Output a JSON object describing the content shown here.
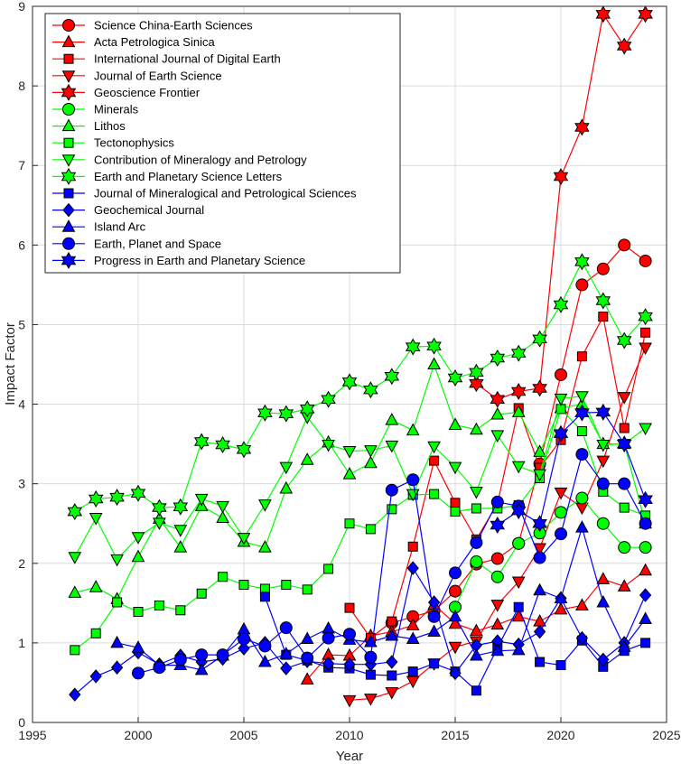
{
  "chart_data": {
    "type": "line",
    "xlabel": "Year",
    "ylabel": "Impact Factor",
    "xlim": [
      1995,
      2025
    ],
    "ylim": [
      0,
      9
    ],
    "xticks": [
      1995,
      2000,
      2005,
      2010,
      2015,
      2020,
      2025
    ],
    "yticks": [
      0,
      1,
      2,
      3,
      4,
      5,
      6,
      7,
      8,
      9
    ],
    "grid": true,
    "legend_position": "top-left",
    "colors": {
      "red": "#ff0000",
      "green": "#00ff00",
      "blue": "#0000ff",
      "edge": "#000000"
    },
    "series": [
      {
        "name": "Science China-Earth Sciences",
        "color": "red",
        "marker": "circle",
        "x": [
          2012,
          2013,
          2014,
          2015,
          2016,
          2017,
          2018,
          2019,
          2020,
          2021,
          2022,
          2023,
          2024
        ],
        "y": [
          1.25,
          1.33,
          1.4,
          1.65,
          1.99,
          2.06,
          2.25,
          3.25,
          4.37,
          5.5,
          5.7,
          6.0,
          5.8
        ]
      },
      {
        "name": "Acta Petrologica Sinica",
        "color": "red",
        "marker": "triangle-up",
        "x": [
          2008,
          2009,
          2010,
          2011,
          2012,
          2013,
          2014,
          2015,
          2016,
          2017,
          2018,
          2019,
          2020,
          2021,
          2022,
          2023,
          2024
        ],
        "y": [
          0.54,
          0.85,
          0.84,
          1.09,
          1.14,
          1.22,
          1.48,
          1.24,
          1.15,
          1.23,
          1.33,
          1.27,
          1.42,
          1.47,
          1.8,
          1.71,
          1.91
        ]
      },
      {
        "name": "International Journal of Digital Earth",
        "color": "red",
        "marker": "square",
        "x": [
          2010,
          2011,
          2012,
          2013,
          2014,
          2015,
          2016,
          2017,
          2018,
          2019,
          2020,
          2021,
          2022,
          2023,
          2024
        ],
        "y": [
          1.44,
          1.06,
          1.27,
          2.21,
          3.29,
          2.76,
          2.3,
          2.75,
          3.95,
          3.2,
          3.55,
          4.6,
          5.1,
          3.7,
          4.9
        ]
      },
      {
        "name": "Journal of Earth Science",
        "color": "red",
        "marker": "triangle-down",
        "x": [
          2010,
          2011,
          2012,
          2013,
          2014,
          2015,
          2016,
          2017,
          2018,
          2019,
          2020,
          2021,
          2022,
          2023,
          2024
        ],
        "y": [
          0.28,
          0.3,
          0.38,
          0.52,
          0.74,
          0.95,
          1.02,
          1.48,
          1.77,
          2.19,
          2.89,
          2.7,
          3.29,
          4.09,
          4.71
        ]
      },
      {
        "name": "Geoscience Frontier",
        "color": "red",
        "marker": "hexagram",
        "x": [
          2016,
          2017,
          2018,
          2019,
          2020,
          2021,
          2022,
          2023,
          2024
        ],
        "y": [
          4.26,
          4.06,
          4.16,
          4.2,
          6.86,
          7.48,
          8.9,
          8.5,
          8.9
        ]
      },
      {
        "name": "Minerals",
        "color": "green",
        "marker": "circle",
        "x": [
          2015,
          2016,
          2017,
          2018,
          2019,
          2020,
          2021,
          2022,
          2023,
          2024
        ],
        "y": [
          1.45,
          2.02,
          1.83,
          2.25,
          2.38,
          2.64,
          2.82,
          2.5,
          2.2,
          2.2
        ]
      },
      {
        "name": "Lithos",
        "color": "green",
        "marker": "triangle-up",
        "x": [
          1997,
          1998,
          1999,
          2000,
          2001,
          2002,
          2003,
          2004,
          2005,
          2006,
          2007,
          2008,
          2009,
          2010,
          2011,
          2012,
          2013,
          2014,
          2015,
          2016,
          2017,
          2018,
          2019,
          2020,
          2021,
          2022,
          2023,
          2024
        ],
        "y": [
          1.63,
          1.7,
          1.55,
          2.08,
          2.56,
          2.2,
          2.72,
          2.57,
          2.27,
          2.2,
          2.94,
          3.3,
          3.52,
          3.12,
          3.26,
          3.8,
          3.67,
          4.5,
          3.74,
          3.68,
          3.87,
          3.9,
          3.4,
          3.95,
          4.0,
          3.5,
          3.5,
          2.5
        ]
      },
      {
        "name": "Tectonophysics",
        "color": "green",
        "marker": "square",
        "x": [
          1997,
          1998,
          1999,
          2000,
          2001,
          2002,
          2003,
          2004,
          2005,
          2006,
          2007,
          2008,
          2009,
          2010,
          2011,
          2012,
          2013,
          2014,
          2015,
          2016,
          2017,
          2018,
          2019,
          2020,
          2021,
          2022,
          2023,
          2024
        ],
        "y": [
          0.91,
          1.12,
          1.51,
          1.39,
          1.47,
          1.41,
          1.62,
          1.83,
          1.73,
          1.68,
          1.73,
          1.67,
          1.93,
          2.5,
          2.43,
          2.68,
          2.86,
          2.87,
          2.65,
          2.69,
          2.69,
          2.73,
          3.07,
          3.94,
          3.66,
          2.9,
          2.7,
          2.6
        ]
      },
      {
        "name": "Contribution of Mineralogy and Petrology",
        "color": "green",
        "marker": "triangle-down",
        "x": [
          1997,
          1998,
          1999,
          2000,
          2001,
          2002,
          2003,
          2004,
          2005,
          2006,
          2007,
          2008,
          2009,
          2010,
          2011,
          2012,
          2013,
          2014,
          2015,
          2016,
          2017,
          2018,
          2019,
          2020,
          2021,
          2022,
          2023,
          2024
        ],
        "y": [
          2.08,
          2.57,
          2.05,
          2.33,
          2.51,
          2.42,
          2.81,
          2.72,
          2.32,
          2.74,
          3.21,
          3.84,
          3.49,
          3.41,
          3.42,
          3.48,
          2.87,
          3.47,
          3.21,
          2.9,
          3.61,
          3.22,
          3.12,
          4.07,
          4.1,
          3.49,
          3.5,
          3.7
        ]
      },
      {
        "name": "Earth and Planetary Science Letters",
        "color": "green",
        "marker": "hexagram",
        "x": [
          1997,
          1998,
          1999,
          2000,
          2001,
          2002,
          2003,
          2004,
          2005,
          2006,
          2007,
          2008,
          2009,
          2010,
          2011,
          2012,
          2013,
          2014,
          2015,
          2016,
          2017,
          2018,
          2019,
          2020,
          2021,
          2022,
          2023,
          2024
        ],
        "y": [
          2.65,
          2.81,
          2.83,
          2.88,
          2.7,
          2.71,
          3.53,
          3.49,
          3.43,
          3.89,
          3.88,
          3.94,
          4.06,
          4.28,
          4.18,
          4.35,
          4.72,
          4.73,
          4.33,
          4.4,
          4.58,
          4.64,
          4.82,
          5.25,
          5.79,
          5.3,
          4.8,
          5.1
        ]
      },
      {
        "name": "Journal of Mineralogical and Petrological Sciences",
        "color": "blue",
        "marker": "square",
        "x": [
          2006,
          2007,
          2008,
          2009,
          2010,
          2011,
          2012,
          2013,
          2014,
          2015,
          2016,
          2017,
          2018,
          2019,
          2020,
          2021,
          2022,
          2023,
          2024
        ],
        "y": [
          1.58,
          0.85,
          0.78,
          0.69,
          0.68,
          0.6,
          0.59,
          0.64,
          0.74,
          0.64,
          0.4,
          0.94,
          1.45,
          0.76,
          0.72,
          1.03,
          0.7,
          0.9,
          1.0
        ]
      },
      {
        "name": "Geochemical Journal",
        "color": "blue",
        "marker": "diamond",
        "x": [
          1997,
          1998,
          1999,
          2000,
          2001,
          2002,
          2003,
          2004,
          2005,
          2006,
          2007,
          2008,
          2009,
          2010,
          2011,
          2012,
          2013,
          2014,
          2015,
          2016,
          2017,
          2018,
          2019,
          2020,
          2021,
          2022,
          2023,
          2024
        ],
        "y": [
          0.35,
          0.58,
          0.69,
          0.88,
          0.73,
          0.84,
          0.76,
          0.8,
          0.93,
          1.0,
          0.68,
          0.77,
          0.74,
          0.73,
          0.73,
          0.76,
          1.94,
          1.51,
          0.62,
          0.97,
          1.02,
          0.98,
          1.14,
          1.56,
          1.06,
          0.79,
          1.0,
          1.6
        ]
      },
      {
        "name": "Island Arc",
        "color": "blue",
        "marker": "triangle-up",
        "x": [
          1999,
          2000,
          2001,
          2002,
          2003,
          2004,
          2005,
          2006,
          2007,
          2008,
          2009,
          2010,
          2011,
          2012,
          2013,
          2014,
          2015,
          2016,
          2017,
          2018,
          2019,
          2020,
          2021,
          2022,
          2023,
          2024
        ],
        "y": [
          1.0,
          0.94,
          0.72,
          0.72,
          0.66,
          0.84,
          1.17,
          0.76,
          0.86,
          1.05,
          1.18,
          1.04,
          1.01,
          1.09,
          1.05,
          1.14,
          1.33,
          0.84,
          0.9,
          0.91,
          1.66,
          1.56,
          2.45,
          1.51,
          0.95,
          1.3
        ]
      },
      {
        "name": "Earth, Planet and Space",
        "color": "blue",
        "marker": "circle",
        "x": [
          2000,
          2001,
          2002,
          2003,
          2004,
          2005,
          2006,
          2007,
          2008,
          2009,
          2010,
          2011,
          2012,
          2013,
          2014,
          2015,
          2016,
          2017,
          2018,
          2019,
          2020,
          2021,
          2022,
          2023,
          2024
        ],
        "y": [
          0.62,
          0.69,
          0.79,
          0.85,
          0.85,
          1.05,
          0.96,
          1.19,
          0.81,
          1.06,
          1.11,
          0.82,
          2.92,
          3.05,
          1.33,
          1.88,
          2.26,
          2.77,
          2.72,
          2.07,
          2.37,
          3.37,
          3.0,
          3.0,
          2.5
        ]
      },
      {
        "name": "Progress in Earth and Planetary Science",
        "color": "blue",
        "marker": "hexagram",
        "x": [
          2017,
          2018,
          2019,
          2020,
          2021,
          2022,
          2023,
          2024
        ],
        "y": [
          2.48,
          2.66,
          2.5,
          3.63,
          3.89,
          3.9,
          3.5,
          2.8
        ]
      }
    ]
  }
}
